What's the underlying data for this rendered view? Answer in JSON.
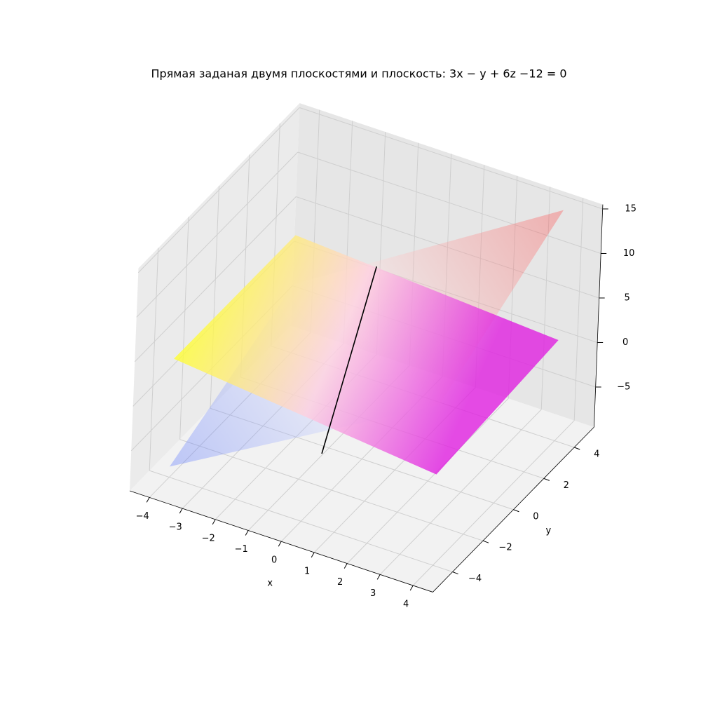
{
  "chart_data": {
    "type": "surface3d",
    "title": "Прямая заданая двумя плоскостями и плоскость: 3x − y + 6z −12 = 0",
    "xlabel": "x",
    "ylabel": "y",
    "xlim": [
      -4.6,
      4.6
    ],
    "ylim": [
      -5.3,
      5.3
    ],
    "zlim": [
      -9.5,
      15.5
    ],
    "xticks": [
      {
        "value": -4,
        "label": "−4"
      },
      {
        "value": -3,
        "label": "−3"
      },
      {
        "value": -2,
        "label": "−2"
      },
      {
        "value": -1,
        "label": "−1"
      },
      0,
      1,
      2,
      3,
      4
    ],
    "yticks": [
      {
        "value": -4,
        "label": "−4"
      },
      {
        "value": -2,
        "label": "−2"
      },
      0,
      2,
      4
    ],
    "zticks": [
      {
        "value": -5,
        "label": "−5"
      },
      0,
      5,
      10,
      15
    ],
    "grid": true,
    "surfaces": [
      {
        "x": [
          -4,
          4
        ],
        "y": [
          -4,
          4
        ],
        "z": [
          [
            -8.3,
            -1.8
          ],
          [
            8.5,
            16.4
          ]
        ],
        "colors": [
          "#4060ff",
          "#ffffff",
          "#ff3030"
        ],
        "alpha": 0.3
      },
      {
        "x": [
          -4,
          4
        ],
        "y": [
          -4,
          4
        ],
        "z": [
          [
            3.8,
            3.7
          ],
          [
            0.7,
            1.8
          ]
        ],
        "colors": [
          "#e020e0",
          "#ffd0e0",
          "#ffff30"
        ],
        "alpha": 0.8
      }
    ],
    "lines": [
      {
        "x": [
          -0.94,
          -0.24
        ],
        "y": [
          -0.61,
          1.04
        ],
        "z": [
          -9,
          10
        ],
        "color": "#000000"
      }
    ]
  }
}
